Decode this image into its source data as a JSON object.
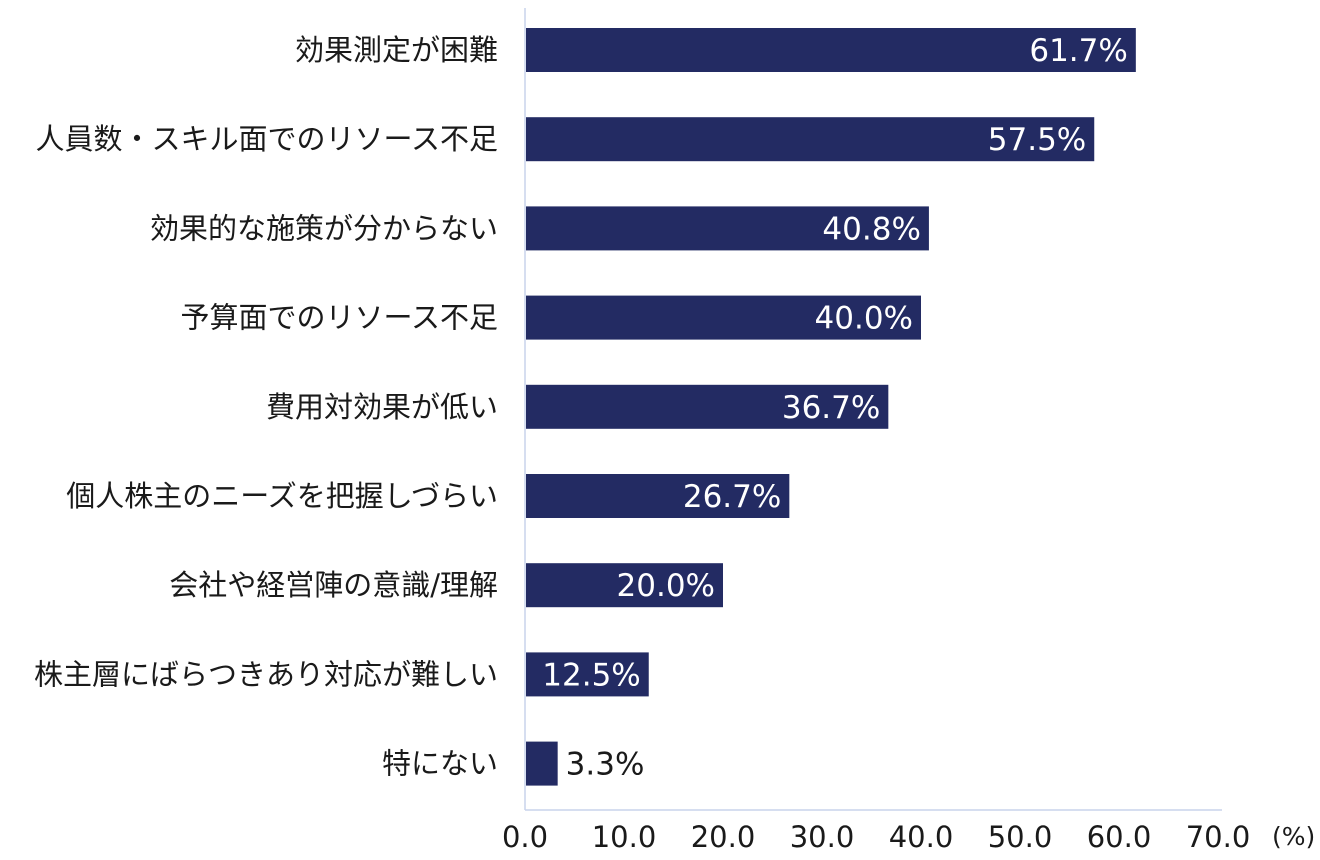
{
  "chart_data": {
    "type": "bar",
    "orientation": "horizontal",
    "categories": [
      "効果測定が困難",
      "人員数・スキル面でのリソース不足",
      "効果的な施策が分からない",
      "予算面でのリソース不足",
      "費用対効果が低い",
      "個人株主のニーズを把握しづらい",
      "会社や経営陣の意識/理解",
      "株主層にばらつきあり対応が難しい",
      "特にない"
    ],
    "values": [
      61.7,
      57.5,
      40.8,
      40.0,
      36.7,
      26.7,
      20.0,
      12.5,
      3.3
    ],
    "value_labels": [
      "61.7%",
      "57.5%",
      "40.8%",
      "40.0%",
      "36.7%",
      "26.7%",
      "20.0%",
      "12.5%",
      "3.3%"
    ],
    "xlim": [
      0,
      70
    ],
    "x_ticks": [
      "0.0",
      "10.0",
      "20.0",
      "30.0",
      "40.0",
      "50.0",
      "60.0",
      "70.0"
    ],
    "x_unit": "(%)",
    "bar_color": "#232b63",
    "grid": false
  }
}
